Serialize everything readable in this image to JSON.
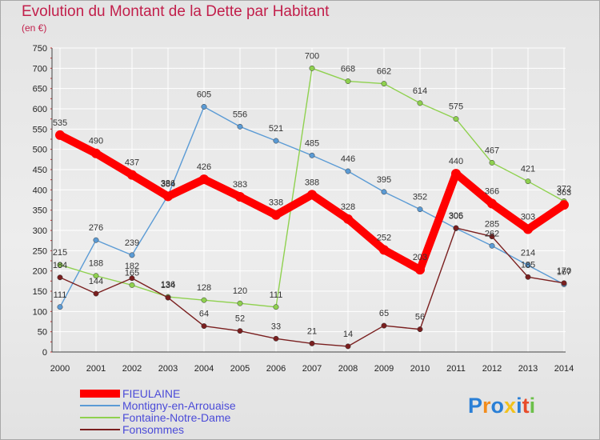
{
  "chart_data": {
    "type": "line",
    "title": "Evolution du Montant de la Dette par Habitant",
    "subtitle": "(en €)",
    "xlabel": "",
    "ylabel": "",
    "x": [
      "2000",
      "2001",
      "2002",
      "2003",
      "2004",
      "2005",
      "2006",
      "2007",
      "2008",
      "2009",
      "2010",
      "2011",
      "2012",
      "2013",
      "2014"
    ],
    "ylim": [
      0,
      750
    ],
    "yticks": [
      0,
      50,
      100,
      150,
      200,
      250,
      300,
      350,
      400,
      450,
      500,
      550,
      600,
      650,
      700,
      750
    ],
    "grid": true,
    "legend_position": "bottom-left",
    "series": [
      {
        "name": "FIEULAINE",
        "color": "#ff0000",
        "values": [
          535,
          490,
          437,
          384,
          426,
          383,
          338,
          388,
          328,
          252,
          203,
          440,
          366,
          303,
          363
        ]
      },
      {
        "name": "Montigny-en-Arrouaise",
        "color": "#5b9bd5",
        "values": [
          111,
          276,
          239,
          386,
          605,
          556,
          521,
          485,
          446,
          395,
          352,
          305,
          262,
          214,
          167
        ]
      },
      {
        "name": "Fontaine-Notre-Dame",
        "color": "#8fd14f",
        "values": [
          215,
          188,
          165,
          136,
          128,
          120,
          111,
          700,
          668,
          662,
          614,
          575,
          467,
          421,
          372
        ]
      },
      {
        "name": "Fonsommes",
        "color": "#7a1f1f",
        "values": [
          184,
          144,
          182,
          134,
          64,
          52,
          33,
          21,
          14,
          65,
          56,
          306,
          285,
          185,
          170
        ]
      }
    ]
  },
  "logo": {
    "text": "Proxiti",
    "letters": [
      "P",
      "r",
      "o",
      "x",
      "i",
      "t",
      "i"
    ],
    "colors": [
      "#2a7fd6",
      "#f28c1d",
      "#2a7fd6",
      "#f2c21d",
      "#2a7fd6",
      "#e84b2a",
      "#6cc04a"
    ]
  }
}
